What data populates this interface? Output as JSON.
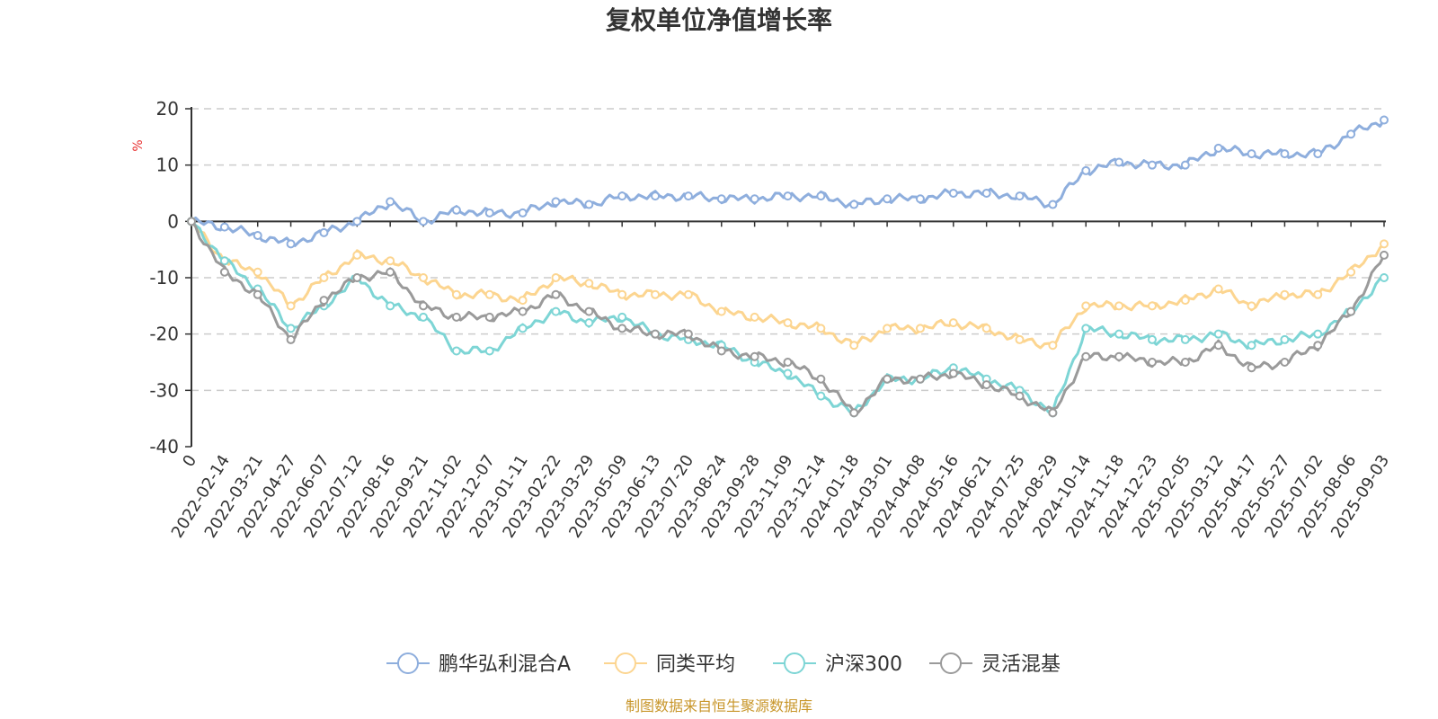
{
  "chart_data": {
    "type": "line",
    "title": "复权单位净值增长率",
    "ylabel": "%",
    "ylim": [
      -40,
      20
    ],
    "yticks": [
      20,
      10,
      0,
      -10,
      -20,
      -30,
      -40
    ],
    "grid": true,
    "legend_position": "bottom",
    "source": "制图数据来自恒生聚源数据库",
    "categories": [
      "0",
      "2022-02-14",
      "2022-03-21",
      "2022-04-27",
      "2022-06-07",
      "2022-07-12",
      "2022-08-16",
      "2022-09-21",
      "2022-11-02",
      "2022-12-07",
      "2023-01-11",
      "2023-02-22",
      "2023-03-29",
      "2023-05-09",
      "2023-06-13",
      "2023-07-20",
      "2023-08-24",
      "2023-09-28",
      "2023-11-09",
      "2023-12-14",
      "2024-01-18",
      "2024-03-01",
      "2024-04-08",
      "2024-05-16",
      "2024-06-21",
      "2024-07-25",
      "2024-08-29",
      "2024-10-14",
      "2024-11-18",
      "2024-12-23",
      "2025-02-05",
      "2025-03-12",
      "2025-04-17",
      "2025-05-27",
      "2025-07-02",
      "2025-08-06",
      "2025-09-03"
    ],
    "series": [
      {
        "name": "鹏华弘利混合A",
        "color": "#8eaedd",
        "values": [
          0,
          -1,
          -2.5,
          -4,
          -2,
          0,
          3.5,
          0,
          2,
          1.5,
          1.5,
          3.5,
          3,
          4.5,
          4.5,
          4.5,
          4,
          4,
          4.5,
          4.5,
          3,
          4,
          4,
          5,
          5,
          4.5,
          3,
          9,
          10.5,
          10,
          10,
          13,
          12,
          12,
          12,
          15.5,
          18
        ]
      },
      {
        "name": "同类平均",
        "color": "#fcd590",
        "values": [
          0,
          -7,
          -9,
          -15,
          -10,
          -6,
          -7,
          -10,
          -13,
          -13,
          -14,
          -10,
          -11,
          -13,
          -13,
          -13,
          -16,
          -17,
          -18,
          -19,
          -22,
          -19,
          -19,
          -18,
          -19,
          -21,
          -22,
          -15,
          -15,
          -15,
          -14,
          -12,
          -15,
          -13,
          -13,
          -9,
          -4
        ]
      },
      {
        "name": "沪深300",
        "color": "#7dd5d5",
        "values": [
          0,
          -7,
          -12,
          -19,
          -15,
          -10,
          -15,
          -17,
          -23,
          -23,
          -19,
          -16,
          -18,
          -17,
          -20,
          -21,
          -22,
          -25,
          -27,
          -31,
          -34,
          -28,
          -28,
          -26,
          -28,
          -30,
          -34,
          -19,
          -20,
          -21,
          -21,
          -20,
          -22,
          -21,
          -20,
          -16,
          -10
        ]
      },
      {
        "name": "灵活混基",
        "color": "#9a9a9a",
        "values": [
          0,
          -9,
          -13,
          -21,
          -14,
          -10,
          -9,
          -15,
          -17,
          -17,
          -16,
          -13,
          -16,
          -19,
          -20,
          -20,
          -23,
          -24,
          -25,
          -28,
          -34,
          -28,
          -28,
          -27,
          -29,
          -31,
          -34,
          -24,
          -24,
          -25,
          -25,
          -22,
          -26,
          -25,
          -22,
          -16,
          -6
        ]
      }
    ]
  }
}
